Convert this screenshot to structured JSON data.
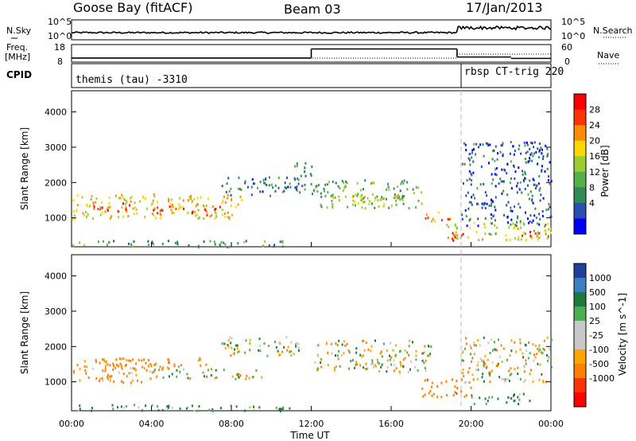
{
  "header": {
    "station": "Goose Bay (fitACF)",
    "beam": "Beam 03",
    "date": "17/Jan/2013"
  },
  "noise_panel": {
    "left_label": "N.Sky",
    "right_label": "N.Search",
    "left_ticks": [
      "10^5",
      "10^0"
    ],
    "right_ticks": [
      "10^5",
      "10^0"
    ]
  },
  "freq_panel": {
    "left_label_1": "Freq.",
    "left_label_2": "[MHz]",
    "right_label": "Nave",
    "left_ticks": [
      "18",
      "8"
    ],
    "right_ticks": [
      "60",
      "0"
    ],
    "freq_steps": [
      {
        "start_h": 0,
        "end_h": 12,
        "mhz": 10.3
      },
      {
        "start_h": 12,
        "end_h": 19.3,
        "mhz": 15.5
      },
      {
        "start_h": 19.3,
        "end_h": 22,
        "mhz": 10.9
      },
      {
        "start_h": 22,
        "end_h": 24,
        "mhz": 10.1
      }
    ]
  },
  "cpid_panel": {
    "label": "CPID",
    "modes": [
      "themis (tau) -3310",
      "rbsp CT-trig 220"
    ],
    "switch_h": 19.3
  },
  "power_panel": {
    "ylabel": "Slant Range [km]",
    "cbar_label": "Power [dB]",
    "cbar_ticks": [
      "28",
      "24",
      "20",
      "16",
      "12",
      "8",
      "4"
    ],
    "cbar_colors": [
      "#0000ff",
      "#2a4fb0",
      "#2e8b57",
      "#55b04a",
      "#9acd32",
      "#ffd700",
      "#ff8c00",
      "#ff3300",
      "#ff0000"
    ]
  },
  "velocity_panel": {
    "ylabel": "Slant Range [km]",
    "cbar_label": "Velocity [m s^-1]",
    "cbar_ticks": [
      "1000",
      "500",
      "100",
      "25",
      "-25",
      "-100",
      "-500",
      "-1000"
    ],
    "cbar_colors": [
      "#1f3f9f",
      "#3a7fc0",
      "#1e7a3c",
      "#4caf50",
      "#c8c8c8",
      "#c8c8c8",
      "#ffa500",
      "#ff7f00",
      "#ff3300",
      "#ff0000"
    ]
  },
  "x_axis": {
    "ticks": [
      "00:00",
      "04:00",
      "08:00",
      "12:00",
      "16:00",
      "20:00",
      "00:00"
    ],
    "label": "Time UT"
  },
  "chart_data": [
    {
      "type": "heatmap",
      "title": "Power [dB]",
      "xlabel": "Time UT",
      "ylabel": "Slant Range [km]",
      "xlim": [
        0,
        24
      ],
      "ylim": [
        180,
        4600
      ],
      "y_ticks": [
        1000,
        2000,
        3000,
        4000
      ],
      "color_range": [
        0,
        32
      ],
      "scatter_regions": [
        {
          "t0": 0,
          "t1": 8.5,
          "r0": 1000,
          "r1": 1700,
          "value": 20
        },
        {
          "t0": 1,
          "t1": 3,
          "r0": 1150,
          "r1": 1450,
          "value": 26
        },
        {
          "t0": 4,
          "t1": 7.5,
          "r0": 1100,
          "r1": 1350,
          "value": 28
        },
        {
          "t0": 7.5,
          "t1": 11.5,
          "r0": 1650,
          "r1": 2200,
          "value": 8
        },
        {
          "t0": 12,
          "t1": 17.5,
          "r0": 1300,
          "r1": 2100,
          "value": 12
        },
        {
          "t0": 13,
          "t1": 17,
          "r0": 1400,
          "r1": 1700,
          "value": 18
        },
        {
          "t0": 17.5,
          "t1": 19,
          "r0": 900,
          "r1": 1200,
          "value": 22
        },
        {
          "t0": 18.5,
          "t1": 24,
          "r0": 400,
          "r1": 900,
          "value": 18
        },
        {
          "t0": 19,
          "t1": 20,
          "r0": 350,
          "r1": 600,
          "value": 30
        },
        {
          "t0": 22.5,
          "t1": 24,
          "r0": 450,
          "r1": 700,
          "value": 26
        },
        {
          "t0": 19.5,
          "t1": 24,
          "r0": 800,
          "r1": 3200,
          "value": 6
        },
        {
          "t0": 0,
          "t1": 11,
          "r0": 200,
          "r1": 380,
          "value": 10
        },
        {
          "t0": 11,
          "t1": 12,
          "r0": 1800,
          "r1": 2600,
          "value": 8
        }
      ]
    },
    {
      "type": "heatmap",
      "title": "Velocity [m s^-1]",
      "xlabel": "Time UT",
      "ylabel": "Slant Range [km]",
      "xlim": [
        0,
        24
      ],
      "ylim": [
        180,
        4600
      ],
      "y_ticks": [
        1000,
        2000,
        3000,
        4000
      ],
      "color_range": [
        -1000,
        1000
      ],
      "scatter_regions": [
        {
          "t0": 0,
          "t1": 4,
          "r0": 1000,
          "r1": 1700,
          "value": -150
        },
        {
          "t0": 4,
          "t1": 9.5,
          "r0": 1100,
          "r1": 1400,
          "value": -10
        },
        {
          "t0": 1.5,
          "t1": 7,
          "r0": 1400,
          "r1": 1700,
          "value": -200
        },
        {
          "t0": 7.5,
          "t1": 11.5,
          "r0": 1750,
          "r1": 2300,
          "value": -10
        },
        {
          "t0": 12,
          "t1": 18,
          "r0": 1300,
          "r1": 2200,
          "value": -10
        },
        {
          "t0": 17.5,
          "t1": 20,
          "r0": 600,
          "r1": 1100,
          "value": -400
        },
        {
          "t0": 20,
          "t1": 23,
          "r0": 400,
          "r1": 700,
          "value": 150
        },
        {
          "t0": 19.5,
          "t1": 24,
          "r0": 1000,
          "r1": 2300,
          "value": -10
        },
        {
          "t0": 0,
          "t1": 11,
          "r0": 200,
          "r1": 380,
          "value": 100
        }
      ]
    }
  ]
}
